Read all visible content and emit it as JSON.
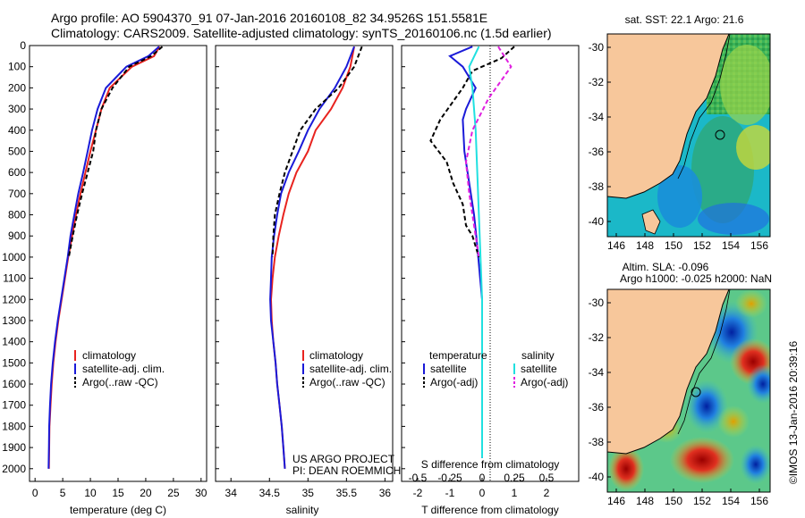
{
  "header": {
    "line1": "Argo profile: AO 5904370_91 07-Jan-2016 20160108_82 34.9526S 151.5581E",
    "line2": "Climatology: CARS2009. Satellite-adjusted climatology: synTS_20160106.nc (1.5d earlier)"
  },
  "colors": {
    "climatology": "#e8231f",
    "satellite": "#1a1ad8",
    "argo": "#000000",
    "sal_satellite": "#20e0e0",
    "sal_argo": "#e020e0",
    "land": "#f7c79b"
  },
  "chart_data": [
    {
      "type": "line",
      "id": "temperature",
      "xlabel": "temperature (deg C)",
      "ylabel": "",
      "xlim": [
        -1,
        31
      ],
      "xticks": [
        0,
        5,
        10,
        15,
        20,
        25,
        30
      ],
      "ylim": [
        2060,
        0
      ],
      "yticks": [
        0,
        100,
        200,
        300,
        400,
        500,
        600,
        700,
        800,
        900,
        1000,
        1100,
        1200,
        1300,
        1400,
        1500,
        1600,
        1700,
        1800,
        1900,
        2000
      ],
      "legend": [
        "climatology",
        "satellite-adj. clim.",
        "Argo(..raw -QC)"
      ],
      "series": [
        {
          "name": "climatology",
          "x": [
            22.5,
            21.5,
            17.5,
            13.5,
            12.0,
            11.0,
            10.0,
            9.1,
            8.2,
            7.4,
            6.7,
            6.0,
            5.4,
            4.8,
            4.2,
            3.7,
            3.3,
            3.0,
            2.8,
            2.6,
            2.55,
            2.5
          ],
          "y": [
            5,
            50,
            100,
            200,
            300,
            400,
            500,
            600,
            700,
            800,
            900,
            1000,
            1100,
            1200,
            1300,
            1400,
            1500,
            1600,
            1700,
            1800,
            1900,
            2000
          ]
        },
        {
          "name": "satellite-adj. clim.",
          "x": [
            22.4,
            20.5,
            16.5,
            12.8,
            11.3,
            10.3,
            9.5,
            8.7,
            7.8,
            7.1,
            6.4,
            5.9,
            5.3,
            4.7,
            4.1,
            3.6,
            3.2,
            2.9,
            2.7,
            2.55,
            2.5,
            2.45
          ],
          "y": [
            5,
            50,
            100,
            200,
            300,
            400,
            500,
            600,
            700,
            800,
            900,
            1000,
            1100,
            1200,
            1300,
            1400,
            1500,
            1600,
            1700,
            1800,
            1900,
            2000
          ]
        },
        {
          "name": "Argo(..raw -QC)",
          "x": [
            23.0,
            21.0,
            17.0,
            14.0,
            12.0,
            11.0,
            10.5,
            9.5,
            8.5,
            7.6,
            6.8,
            6.1
          ],
          "y": [
            5,
            50,
            100,
            200,
            300,
            400,
            500,
            600,
            700,
            800,
            900,
            1000
          ]
        }
      ]
    },
    {
      "type": "line",
      "id": "salinity",
      "xlabel": "salinity",
      "xlim": [
        33.8,
        36.1
      ],
      "xticks": [
        34,
        34.5,
        35,
        35.5,
        36
      ],
      "xticklabels": [
        "34",
        "34.5",
        "35",
        "35.5",
        "36"
      ],
      "ylim": [
        2060,
        0
      ],
      "legend": [
        "climatology",
        "satellite-adj. clim.",
        "Argo(..raw -QC)"
      ],
      "series": [
        {
          "name": "climatology",
          "x": [
            35.6,
            35.55,
            35.45,
            35.3,
            35.1,
            35.0,
            34.85,
            34.75,
            34.68,
            34.62,
            34.57,
            34.54,
            34.52,
            34.53,
            34.55,
            34.58,
            34.6,
            34.63,
            34.66,
            34.68,
            34.7
          ],
          "y": [
            5,
            100,
            200,
            300,
            400,
            500,
            600,
            700,
            800,
            900,
            1000,
            1100,
            1200,
            1300,
            1400,
            1500,
            1600,
            1700,
            1800,
            1900,
            2000
          ]
        },
        {
          "name": "satellite-adj. clim.",
          "x": [
            35.6,
            35.5,
            35.35,
            35.15,
            35.0,
            34.88,
            34.75,
            34.65,
            34.6,
            34.56,
            34.53,
            34.52,
            34.51,
            34.52,
            34.55,
            34.58,
            34.6,
            34.63,
            34.66,
            34.68,
            34.7
          ],
          "y": [
            5,
            100,
            200,
            300,
            400,
            500,
            600,
            700,
            800,
            900,
            1000,
            1100,
            1200,
            1300,
            1400,
            1500,
            1600,
            1700,
            1800,
            1900,
            2000
          ]
        },
        {
          "name": "Argo(..raw -QC)",
          "x": [
            35.7,
            35.6,
            35.4,
            35.1,
            34.9,
            34.8,
            34.7,
            34.63,
            34.57,
            34.55,
            34.54
          ],
          "y": [
            5,
            100,
            200,
            300,
            400,
            500,
            600,
            700,
            800,
            900,
            1000
          ]
        }
      ]
    },
    {
      "type": "line",
      "id": "difference",
      "xlabel": "T difference from climatology",
      "xlabel2": "S difference from climatology",
      "xlim": [
        -2.5,
        3.0
      ],
      "xticks": [
        -2,
        -1,
        0,
        1,
        2
      ],
      "xticks2": [
        "-0.5",
        "-0.25",
        "0",
        "0.25",
        "0.5"
      ],
      "ylim": [
        2060,
        0
      ],
      "legend_t_title": "temperature",
      "legend_s_title": "salinity",
      "legend_t": [
        "satellite",
        "Argo(-adj)"
      ],
      "legend_s": [
        "satellite",
        "Argo(-adj)"
      ],
      "series": [
        {
          "name": "T satellite",
          "x": [
            -0.3,
            -1.0,
            -0.6,
            -0.2,
            -0.5,
            -0.6,
            -0.55,
            -0.45,
            -0.35,
            -0.25,
            -0.18,
            -0.12,
            -0.06,
            0,
            0,
            0,
            0,
            0,
            0,
            0,
            0
          ],
          "y": [
            5,
            50,
            100,
            200,
            300,
            350,
            500,
            600,
            700,
            800,
            900,
            1000,
            1100,
            1200,
            1300,
            1400,
            1500,
            1600,
            1700,
            1800,
            1950
          ]
        },
        {
          "name": "T Argo(-adj)",
          "x": [
            1.0,
            0.6,
            -0.3,
            -0.6,
            -1.3,
            -1.6,
            -1.1,
            -0.9,
            -0.6,
            -0.5,
            -0.3,
            -0.2,
            -0.1
          ],
          "y": [
            5,
            60,
            120,
            200,
            350,
            450,
            550,
            650,
            750,
            850,
            900,
            950,
            1000
          ]
        },
        {
          "name": "S satellite",
          "x": [
            -0.1,
            -0.4,
            -0.3,
            -0.2,
            -0.15,
            -0.1,
            -0.05,
            0,
            0,
            0,
            0,
            0
          ],
          "y": [
            5,
            100,
            200,
            400,
            600,
            800,
            1000,
            1200,
            1400,
            1600,
            1800,
            1950
          ]
        },
        {
          "name": "S Argo(-adj)",
          "x": [
            0.5,
            0.9,
            0.2,
            -0.3,
            -0.5,
            -0.4,
            -0.3,
            -0.2,
            -0.1
          ],
          "y": [
            5,
            100,
            250,
            400,
            550,
            700,
            800,
            900,
            1000
          ]
        }
      ]
    }
  ],
  "maps": {
    "sst": {
      "title": "sat. SST: 22.1 Argo: 21.6",
      "yticks": [
        "-30",
        "-32",
        "-34",
        "-36",
        "-38",
        "-40"
      ],
      "xticks": [
        "146",
        "148",
        "150",
        "152",
        "154",
        "156"
      ]
    },
    "sla": {
      "title1": "Altim. SLA: -0.096",
      "title2": "Argo h1000: -0.025 h2000: NaN",
      "yticks": [
        "-30",
        "-32",
        "-34",
        "-36",
        "-38",
        "-40"
      ],
      "xticks": [
        "146",
        "148",
        "150",
        "152",
        "154",
        "156"
      ]
    }
  },
  "annotation": {
    "project": "US ARGO PROJECT",
    "pi": "PI: DEAN ROEMMICH",
    "stamp": "©IMOS 13-Jan-2016 20:39:16"
  }
}
